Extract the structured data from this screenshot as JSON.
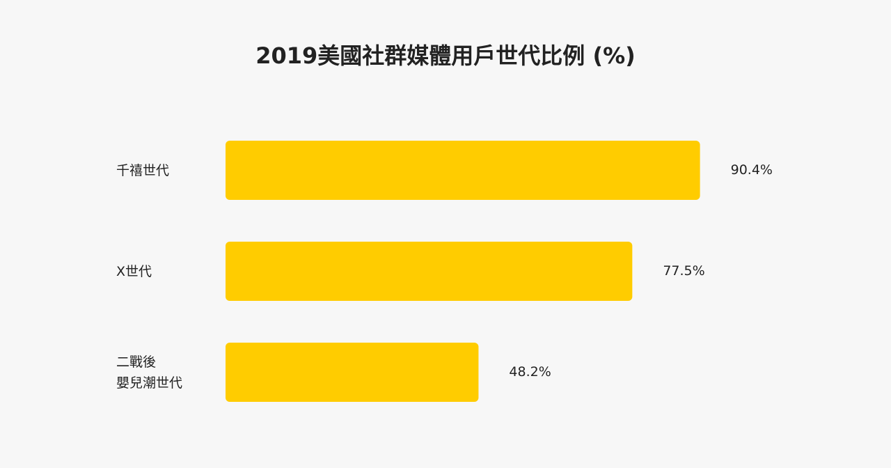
{
  "chart_data": {
    "type": "bar",
    "orientation": "horizontal",
    "title": "2019美國社群媒體用戶世代比例 (%)",
    "categories": [
      "千禧世代",
      "X世代",
      "二戰後\n嬰兒潮世代"
    ],
    "values": [
      90.4,
      77.5,
      48.2
    ],
    "value_labels": [
      "90.4%",
      "77.5%",
      "48.2%"
    ],
    "color": "#ffcc00"
  }
}
